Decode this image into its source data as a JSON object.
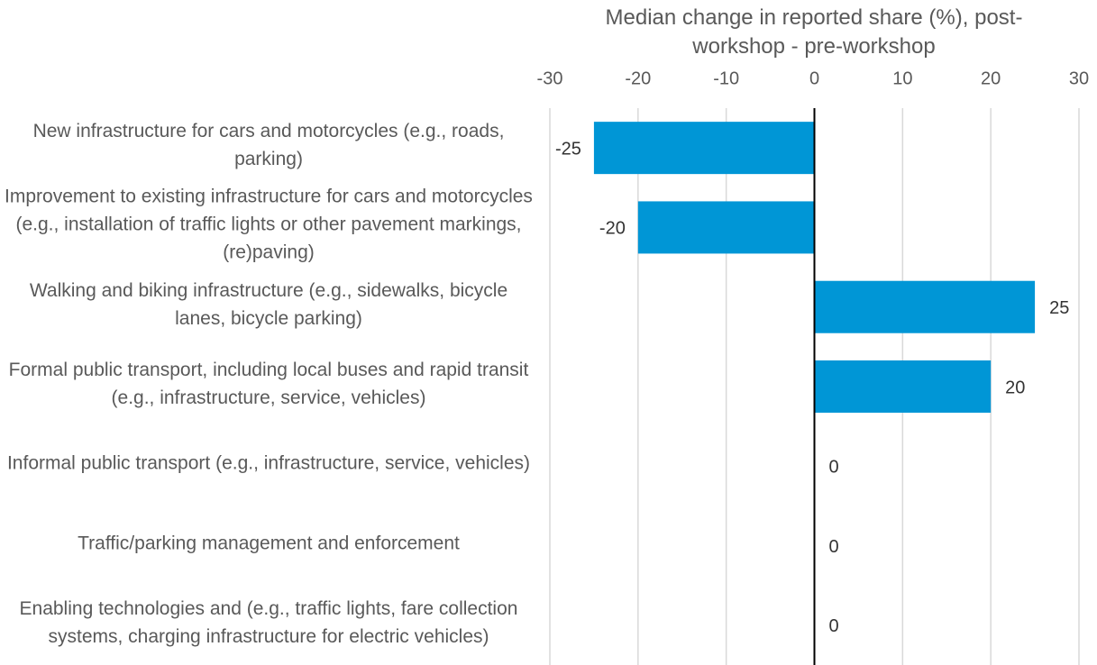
{
  "chart_data": {
    "type": "barh",
    "x_label": "Median change in reported share (%), post-workshop - pre-workshop",
    "categories": [
      "New infrastructure for cars and motorcycles (e.g., roads, parking)",
      "Improvement to existing infrastructure for cars and motorcycles (e.g., installation of traffic lights or other pavement markings, (re)paving)",
      "Walking and biking infrastructure (e.g., sidewalks, bicycle lanes, bicycle parking)",
      "Formal public transport, including local buses and rapid transit (e.g., infrastructure, service, vehicles)",
      "Informal public transport (e.g., infrastructure, service, vehicles)",
      "Traffic/parking management and enforcement",
      "Enabling technologies and (e.g., traffic lights, fare collection systems, charging infrastructure for electric vehicles)"
    ],
    "values": [
      -25,
      -20,
      25,
      20,
      0,
      0,
      0
    ],
    "color": "#0096d6",
    "xlim": [
      -30,
      30
    ],
    "xticks": [
      -30,
      -20,
      -10,
      0,
      10,
      20,
      30
    ],
    "grid": true
  }
}
